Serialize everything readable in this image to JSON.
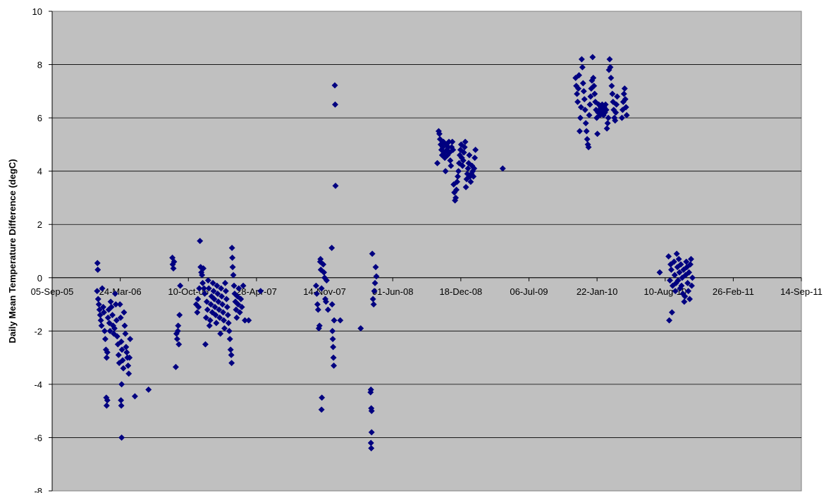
{
  "chart_data": {
    "type": "scatter",
    "title": "",
    "xlabel": "",
    "ylabel": "Daily Mean Temperature Difference (degC)",
    "ylim": [
      -8,
      10
    ],
    "yticks": [
      10,
      8,
      6,
      4,
      2,
      0,
      -2,
      -4,
      -6,
      -8
    ],
    "xlim": [
      "2005-09-05",
      "2011-09-14"
    ],
    "xticks": [
      {
        "date": "2005-09-05",
        "label": "05-Sep-05"
      },
      {
        "date": "2006-03-24",
        "label": "24-Mar-06"
      },
      {
        "date": "2006-10-10",
        "label": "10-Oct-06"
      },
      {
        "date": "2007-04-28",
        "label": "28-Apr-07"
      },
      {
        "date": "2007-11-14",
        "label": "14-Nov-07"
      },
      {
        "date": "2008-06-01",
        "label": "01-Jun-08"
      },
      {
        "date": "2008-12-18",
        "label": "18-Dec-08"
      },
      {
        "date": "2009-07-06",
        "label": "06-Jul-09"
      },
      {
        "date": "2010-01-22",
        "label": "22-Jan-10"
      },
      {
        "date": "2010-08-10",
        "label": "10-Aug-10"
      },
      {
        "date": "2011-02-26",
        "label": "26-Feb-11"
      },
      {
        "date": "2011-09-14",
        "label": "14-Sep-11"
      }
    ],
    "grid": "horizontal",
    "legend": "none",
    "marker": "diamond",
    "color": "#000080",
    "plot_background": "#c0c0c0",
    "points": [
      [
        "2006-01-16",
        0.55
      ],
      [
        "2006-01-17",
        0.3
      ],
      [
        "2006-01-15",
        -0.5
      ],
      [
        "2006-01-18",
        -0.8
      ],
      [
        "2006-01-20",
        -1.0
      ],
      [
        "2006-01-22",
        -1.2
      ],
      [
        "2006-01-24",
        -1.4
      ],
      [
        "2006-01-26",
        -1.6
      ],
      [
        "2006-01-28",
        -1.8
      ],
      [
        "2006-01-30",
        -0.4
      ],
      [
        "2006-02-02",
        -1.1
      ],
      [
        "2006-02-04",
        -1.3
      ],
      [
        "2006-02-06",
        -2.0
      ],
      [
        "2006-02-08",
        -2.3
      ],
      [
        "2006-02-10",
        -2.7
      ],
      [
        "2006-02-12",
        -3.0
      ],
      [
        "2006-02-14",
        -2.8
      ],
      [
        "2006-02-16",
        -1.5
      ],
      [
        "2006-02-18",
        -1.2
      ],
      [
        "2006-02-20",
        -1.7
      ],
      [
        "2006-02-22",
        -2.0
      ],
      [
        "2006-02-11",
        -4.5
      ],
      [
        "2006-02-12",
        -4.8
      ],
      [
        "2006-02-14",
        -4.6
      ],
      [
        "2006-02-24",
        -0.9
      ],
      [
        "2006-02-26",
        -1.1
      ],
      [
        "2006-03-01",
        -1.4
      ],
      [
        "2006-03-03",
        -1.8
      ],
      [
        "2006-03-05",
        -2.1
      ],
      [
        "2006-03-07",
        -1.9
      ],
      [
        "2006-03-09",
        -0.6
      ],
      [
        "2006-03-11",
        -1.0
      ],
      [
        "2006-03-13",
        -1.6
      ],
      [
        "2006-03-15",
        -2.2
      ],
      [
        "2006-03-17",
        -2.5
      ],
      [
        "2006-03-19",
        -2.9
      ],
      [
        "2006-03-21",
        -3.2
      ],
      [
        "2006-03-23",
        -1.0
      ],
      [
        "2006-03-25",
        -1.5
      ],
      [
        "2006-03-27",
        -2.4
      ],
      [
        "2006-03-29",
        -2.7
      ],
      [
        "2006-03-31",
        -3.1
      ],
      [
        "2006-04-02",
        -3.4
      ],
      [
        "2006-03-28",
        -4.0
      ],
      [
        "2006-03-26",
        -4.6
      ],
      [
        "2006-03-27",
        -4.8
      ],
      [
        "2006-03-28",
        -6.0
      ],
      [
        "2006-04-04",
        -1.3
      ],
      [
        "2006-04-06",
        -1.8
      ],
      [
        "2006-04-08",
        -2.1
      ],
      [
        "2006-04-10",
        -2.6
      ],
      [
        "2006-04-12",
        -2.8
      ],
      [
        "2006-04-14",
        -3.0
      ],
      [
        "2006-04-16",
        -3.3
      ],
      [
        "2006-04-18",
        -3.6
      ],
      [
        "2006-04-20",
        -3.0
      ],
      [
        "2006-04-22",
        -2.3
      ],
      [
        "2006-05-06",
        -4.45
      ],
      [
        "2006-06-15",
        -4.2
      ],
      [
        "2006-08-24",
        0.75
      ],
      [
        "2006-08-25",
        0.5
      ],
      [
        "2006-08-27",
        0.35
      ],
      [
        "2006-08-29",
        0.6
      ],
      [
        "2006-09-03",
        -3.35
      ],
      [
        "2006-09-05",
        -2.1
      ],
      [
        "2006-09-07",
        -2.3
      ],
      [
        "2006-09-09",
        -2.0
      ],
      [
        "2006-09-10",
        -1.8
      ],
      [
        "2006-09-12",
        -2.5
      ],
      [
        "2006-09-14",
        -1.4
      ],
      [
        "2006-09-16",
        -0.3
      ],
      [
        "2006-11-02",
        -1.0
      ],
      [
        "2006-11-05",
        -1.3
      ],
      [
        "2006-11-07",
        -0.8
      ],
      [
        "2006-11-09",
        -1.1
      ],
      [
        "2006-11-11",
        -0.4
      ],
      [
        "2006-11-13",
        1.38
      ],
      [
        "2006-11-15",
        0.4
      ],
      [
        "2006-11-17",
        0.2
      ],
      [
        "2006-11-19",
        0.1
      ],
      [
        "2006-11-21",
        -0.2
      ],
      [
        "2006-11-23",
        0.35
      ],
      [
        "2006-11-25",
        -0.4
      ],
      [
        "2006-11-27",
        -0.6
      ],
      [
        "2006-11-29",
        -2.5
      ],
      [
        "2006-12-01",
        -1.5
      ],
      [
        "2006-12-03",
        -0.9
      ],
      [
        "2006-12-05",
        -1.2
      ],
      [
        "2006-12-07",
        -0.1
      ],
      [
        "2006-12-09",
        -0.4
      ],
      [
        "2006-12-11",
        -1.8
      ],
      [
        "2006-12-13",
        -1.6
      ],
      [
        "2006-12-15",
        -1.0
      ],
      [
        "2006-12-17",
        -0.7
      ],
      [
        "2006-12-19",
        -1.3
      ],
      [
        "2006-12-21",
        -0.2
      ],
      [
        "2006-12-23",
        -0.5
      ],
      [
        "2006-12-25",
        -0.8
      ],
      [
        "2006-12-27",
        -1.1
      ],
      [
        "2006-12-29",
        -1.4
      ],
      [
        "2006-12-31",
        -1.7
      ],
      [
        "2007-01-02",
        -0.3
      ],
      [
        "2007-01-04",
        -0.6
      ],
      [
        "2007-01-06",
        -0.9
      ],
      [
        "2007-01-08",
        -1.2
      ],
      [
        "2007-01-10",
        -1.5
      ],
      [
        "2007-01-12",
        -2.1
      ],
      [
        "2007-01-14",
        -0.4
      ],
      [
        "2007-01-16",
        -0.7
      ],
      [
        "2007-01-18",
        -1.0
      ],
      [
        "2007-01-20",
        -1.3
      ],
      [
        "2007-01-22",
        -1.6
      ],
      [
        "2007-01-24",
        -1.9
      ],
      [
        "2007-01-26",
        -0.2
      ],
      [
        "2007-01-28",
        -0.5
      ],
      [
        "2007-01-30",
        -0.8
      ],
      [
        "2007-02-01",
        -1.1
      ],
      [
        "2007-02-03",
        -1.4
      ],
      [
        "2007-02-05",
        -1.7
      ],
      [
        "2007-02-07",
        -2.0
      ],
      [
        "2007-02-09",
        -2.3
      ],
      [
        "2007-02-11",
        -2.7
      ],
      [
        "2007-02-13",
        -2.9
      ],
      [
        "2007-02-14",
        -3.2
      ],
      [
        "2007-02-15",
        1.12
      ],
      [
        "2007-02-16",
        0.75
      ],
      [
        "2007-02-17",
        0.4
      ],
      [
        "2007-02-19",
        0.1
      ],
      [
        "2007-02-21",
        -0.3
      ],
      [
        "2007-02-23",
        -0.6
      ],
      [
        "2007-02-25",
        -0.9
      ],
      [
        "2007-02-27",
        -1.2
      ],
      [
        "2007-03-01",
        -1.5
      ],
      [
        "2007-03-03",
        -0.7
      ],
      [
        "2007-03-05",
        -1.0
      ],
      [
        "2007-03-07",
        -0.4
      ],
      [
        "2007-03-10",
        -1.3
      ],
      [
        "2007-03-13",
        -0.8
      ],
      [
        "2007-03-16",
        -1.1
      ],
      [
        "2007-03-20",
        -0.3
      ],
      [
        "2007-03-25",
        -1.6
      ],
      [
        "2007-04-05",
        -1.6
      ],
      [
        "2007-05-10",
        -0.5
      ],
      [
        "2007-10-20",
        -0.3
      ],
      [
        "2007-10-22",
        -0.6
      ],
      [
        "2007-10-24",
        -1.0
      ],
      [
        "2007-10-26",
        -1.2
      ],
      [
        "2007-10-28",
        -1.9
      ],
      [
        "2007-10-30",
        -1.8
      ],
      [
        "2007-11-01",
        0.6
      ],
      [
        "2007-11-02",
        0.7
      ],
      [
        "2007-11-03",
        0.3
      ],
      [
        "2007-11-05",
        -0.4
      ],
      [
        "2007-11-06",
        -4.5
      ],
      [
        "2007-11-05",
        -4.95
      ],
      [
        "2007-11-10",
        0.5
      ],
      [
        "2007-11-12",
        0.2
      ],
      [
        "2007-11-14",
        0.0
      ],
      [
        "2007-11-16",
        -0.8
      ],
      [
        "2007-11-18",
        -0.9
      ],
      [
        "2007-11-20",
        -0.1
      ],
      [
        "2007-11-24",
        -1.2
      ],
      [
        "2007-12-05",
        1.12
      ],
      [
        "2007-12-06",
        -1.0
      ],
      [
        "2007-12-07",
        -2.0
      ],
      [
        "2007-12-08",
        -2.3
      ],
      [
        "2007-12-09",
        -2.6
      ],
      [
        "2007-12-10",
        -3.0
      ],
      [
        "2007-12-11",
        -3.3
      ],
      [
        "2007-12-12",
        -1.6
      ],
      [
        "2007-12-14",
        7.22
      ],
      [
        "2007-12-15",
        6.5
      ],
      [
        "2007-12-16",
        3.45
      ],
      [
        "2007-12-30",
        -1.6
      ],
      [
        "2008-02-28",
        -1.9
      ],
      [
        "2008-04-02",
        0.9
      ],
      [
        "2008-04-04",
        -0.8
      ],
      [
        "2008-04-06",
        -1.0
      ],
      [
        "2008-04-08",
        -0.5
      ],
      [
        "2008-04-10",
        -0.2
      ],
      [
        "2008-04-12",
        0.4
      ],
      [
        "2008-04-14",
        0.05
      ],
      [
        "2008-03-28",
        -4.3
      ],
      [
        "2008-03-29",
        -4.2
      ],
      [
        "2008-03-30",
        -4.9
      ],
      [
        "2008-03-31",
        -5.0
      ],
      [
        "2008-03-31",
        -5.8
      ],
      [
        "2008-03-29",
        -6.2
      ],
      [
        "2008-03-30",
        -6.4
      ],
      [
        "2008-10-10",
        4.3
      ],
      [
        "2008-10-14",
        5.5
      ],
      [
        "2008-10-16",
        5.4
      ],
      [
        "2008-10-18",
        5.2
      ],
      [
        "2008-10-20",
        5.0
      ],
      [
        "2008-10-22",
        4.8
      ],
      [
        "2008-10-24",
        4.6
      ],
      [
        "2008-10-26",
        4.9
      ],
      [
        "2008-10-28",
        5.1
      ],
      [
        "2008-10-30",
        4.7
      ],
      [
        "2008-11-01",
        4.5
      ],
      [
        "2008-11-03",
        4.0
      ],
      [
        "2008-11-05",
        5.0
      ],
      [
        "2008-11-07",
        4.8
      ],
      [
        "2008-11-09",
        4.6
      ],
      [
        "2008-11-11",
        4.9
      ],
      [
        "2008-11-13",
        5.1
      ],
      [
        "2008-11-15",
        4.7
      ],
      [
        "2008-11-17",
        4.4
      ],
      [
        "2008-11-19",
        4.2
      ],
      [
        "2008-11-21",
        4.9
      ],
      [
        "2008-11-23",
        5.1
      ],
      [
        "2008-11-25",
        4.8
      ],
      [
        "2008-11-27",
        3.5
      ],
      [
        "2008-11-29",
        3.2
      ],
      [
        "2008-12-01",
        2.9
      ],
      [
        "2008-12-03",
        3.0
      ],
      [
        "2008-12-05",
        3.3
      ],
      [
        "2008-12-07",
        3.6
      ],
      [
        "2008-12-09",
        3.8
      ],
      [
        "2008-12-11",
        4.0
      ],
      [
        "2008-12-13",
        4.3
      ],
      [
        "2008-12-15",
        4.6
      ],
      [
        "2008-12-17",
        4.8
      ],
      [
        "2008-12-19",
        5.0
      ],
      [
        "2008-12-21",
        4.5
      ],
      [
        "2008-12-23",
        4.2
      ],
      [
        "2008-12-25",
        4.4
      ],
      [
        "2008-12-27",
        4.7
      ],
      [
        "2008-12-29",
        4.9
      ],
      [
        "2008-12-31",
        5.1
      ],
      [
        "2009-01-02",
        3.4
      ],
      [
        "2009-01-04",
        3.7
      ],
      [
        "2009-01-06",
        3.9
      ],
      [
        "2009-01-08",
        4.1
      ],
      [
        "2009-01-10",
        4.3
      ],
      [
        "2009-01-12",
        4.6
      ],
      [
        "2009-01-14",
        3.8
      ],
      [
        "2009-01-16",
        3.6
      ],
      [
        "2009-01-18",
        3.9
      ],
      [
        "2009-01-20",
        4.2
      ],
      [
        "2009-01-22",
        4.0
      ],
      [
        "2009-01-24",
        3.8
      ],
      [
        "2009-01-26",
        4.1
      ],
      [
        "2009-01-28",
        4.5
      ],
      [
        "2009-01-30",
        4.8
      ],
      [
        "2009-04-20",
        4.1
      ],
      [
        "2009-11-20",
        7.5
      ],
      [
        "2009-11-22",
        7.2
      ],
      [
        "2009-11-24",
        6.9
      ],
      [
        "2009-11-26",
        6.6
      ],
      [
        "2009-11-28",
        7.1
      ],
      [
        "2009-11-30",
        7.6
      ],
      [
        "2009-12-02",
        5.5
      ],
      [
        "2009-12-04",
        6.0
      ],
      [
        "2009-12-06",
        6.4
      ],
      [
        "2009-12-08",
        8.2
      ],
      [
        "2009-12-10",
        7.9
      ],
      [
        "2009-12-12",
        7.3
      ],
      [
        "2009-12-14",
        7.0
      ],
      [
        "2009-12-16",
        6.7
      ],
      [
        "2009-12-18",
        6.3
      ],
      [
        "2009-12-20",
        5.8
      ],
      [
        "2009-12-22",
        5.5
      ],
      [
        "2009-12-24",
        5.2
      ],
      [
        "2009-12-26",
        5.0
      ],
      [
        "2009-12-28",
        4.9
      ],
      [
        "2009-12-30",
        6.1
      ],
      [
        "2010-01-01",
        6.5
      ],
      [
        "2010-01-03",
        6.8
      ],
      [
        "2010-01-05",
        7.1
      ],
      [
        "2010-01-07",
        7.4
      ],
      [
        "2010-01-09",
        8.28
      ],
      [
        "2010-01-11",
        7.5
      ],
      [
        "2010-01-13",
        7.2
      ],
      [
        "2010-01-15",
        6.9
      ],
      [
        "2010-01-17",
        6.6
      ],
      [
        "2010-01-19",
        6.3
      ],
      [
        "2010-01-21",
        6.0
      ],
      [
        "2010-01-23",
        5.4
      ],
      [
        "2010-01-25",
        6.2
      ],
      [
        "2010-01-27",
        6.5
      ],
      [
        "2010-01-29",
        6.3
      ],
      [
        "2010-01-31",
        6.1
      ],
      [
        "2010-02-02",
        6.4
      ],
      [
        "2010-02-04",
        6.2
      ],
      [
        "2010-02-06",
        6.5
      ],
      [
        "2010-02-08",
        6.3
      ],
      [
        "2010-02-10",
        6.1
      ],
      [
        "2010-02-12",
        6.4
      ],
      [
        "2010-02-14",
        6.2
      ],
      [
        "2010-02-16",
        6.5
      ],
      [
        "2010-02-18",
        6.3
      ],
      [
        "2010-02-20",
        5.6
      ],
      [
        "2010-02-22",
        5.8
      ],
      [
        "2010-02-24",
        6.0
      ],
      [
        "2010-02-26",
        7.8
      ],
      [
        "2010-02-28",
        8.2
      ],
      [
        "2010-03-02",
        7.9
      ],
      [
        "2010-03-04",
        7.5
      ],
      [
        "2010-03-06",
        7.2
      ],
      [
        "2010-03-08",
        6.9
      ],
      [
        "2010-03-10",
        6.6
      ],
      [
        "2010-03-12",
        6.3
      ],
      [
        "2010-03-14",
        6.0
      ],
      [
        "2010-03-16",
        5.9
      ],
      [
        "2010-03-18",
        6.2
      ],
      [
        "2010-03-20",
        6.5
      ],
      [
        "2010-03-22",
        6.8
      ],
      [
        "2010-04-05",
        6.0
      ],
      [
        "2010-04-07",
        6.3
      ],
      [
        "2010-04-09",
        6.6
      ],
      [
        "2010-04-11",
        6.9
      ],
      [
        "2010-04-13",
        7.1
      ],
      [
        "2010-04-15",
        6.7
      ],
      [
        "2010-04-17",
        6.4
      ],
      [
        "2010-04-19",
        6.1
      ],
      [
        "2010-07-25",
        0.2
      ],
      [
        "2010-08-20",
        0.8
      ],
      [
        "2010-08-22",
        -1.6
      ],
      [
        "2010-08-24",
        -0.1
      ],
      [
        "2010-08-26",
        0.5
      ],
      [
        "2010-08-28",
        0.3
      ],
      [
        "2010-08-30",
        -1.3
      ],
      [
        "2010-09-01",
        -0.3
      ],
      [
        "2010-09-05",
        0.6
      ],
      [
        "2010-09-07",
        0.1
      ],
      [
        "2010-09-09",
        -0.5
      ],
      [
        "2010-09-11",
        -0.2
      ],
      [
        "2010-09-13",
        0.9
      ],
      [
        "2010-09-15",
        0.4
      ],
      [
        "2010-09-17",
        -0.1
      ],
      [
        "2010-09-19",
        0.7
      ],
      [
        "2010-09-21",
        0.2
      ],
      [
        "2010-09-23",
        -0.4
      ],
      [
        "2010-09-25",
        0.5
      ],
      [
        "2010-09-27",
        -0.3
      ],
      [
        "2010-09-29",
        0.0
      ],
      [
        "2010-10-01",
        -0.6
      ],
      [
        "2010-10-03",
        0.3
      ],
      [
        "2010-10-05",
        -0.9
      ],
      [
        "2010-10-07",
        -0.7
      ],
      [
        "2010-10-09",
        0.1
      ],
      [
        "2010-10-11",
        0.6
      ],
      [
        "2010-10-13",
        0.4
      ],
      [
        "2010-10-15",
        -0.2
      ],
      [
        "2010-10-17",
        -0.5
      ],
      [
        "2010-10-19",
        0.2
      ],
      [
        "2010-10-21",
        -0.8
      ],
      [
        "2010-10-23",
        0.5
      ],
      [
        "2010-10-25",
        0.7
      ],
      [
        "2010-10-27",
        -0.3
      ],
      [
        "2010-10-29",
        0.0
      ]
    ]
  }
}
